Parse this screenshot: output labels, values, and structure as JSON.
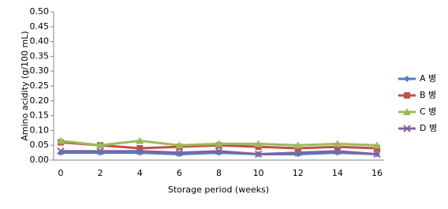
{
  "chart_data": {
    "type": "line",
    "x_label": "Storage period (weeks)",
    "y_label": "Amino acidity (g/100 mL)",
    "categories": [
      "0",
      "2",
      "4",
      "6",
      "8",
      "10",
      "12",
      "14",
      "16"
    ],
    "series": [
      {
        "name": "A 병",
        "color": "#4f81bd",
        "marker": "diamond",
        "values": [
          0.025,
          0.025,
          0.025,
          0.02,
          0.025,
          0.02,
          0.02,
          0.025,
          0.02
        ]
      },
      {
        "name": "B 병",
        "color": "#c0504d",
        "marker": "square",
        "values": [
          0.06,
          0.05,
          0.04,
          0.045,
          0.05,
          0.045,
          0.04,
          0.045,
          0.04
        ]
      },
      {
        "name": "C 병",
        "color": "#9bbb59",
        "marker": "triangle",
        "values": [
          0.065,
          0.05,
          0.065,
          0.05,
          0.055,
          0.055,
          0.05,
          0.055,
          0.05
        ]
      },
      {
        "name": "D 병",
        "color": "#8064a2",
        "marker": "x",
        "values": [
          0.03,
          0.03,
          0.03,
          0.025,
          0.03,
          0.02,
          0.025,
          0.03,
          0.02
        ]
      }
    ],
    "ylim": [
      0,
      0.5
    ],
    "yticks": [
      {
        "value": 0,
        "label": "0.00"
      },
      {
        "value": 0.05,
        "label": "0.05"
      },
      {
        "value": 0.1,
        "label": "0.10"
      },
      {
        "value": 0.15,
        "label": "0.15"
      },
      {
        "value": 0.2,
        "label": "0.20"
      },
      {
        "value": 0.25,
        "label": "0.25"
      },
      {
        "value": 0.3,
        "label": "0.30"
      },
      {
        "value": 0.35,
        "label": "0.35"
      },
      {
        "value": 0.4,
        "label": "0.40"
      },
      {
        "value": 0.45,
        "label": "0.45"
      },
      {
        "value": 0.5,
        "label": "0.50"
      }
    ],
    "grid": false,
    "legend": "right"
  }
}
